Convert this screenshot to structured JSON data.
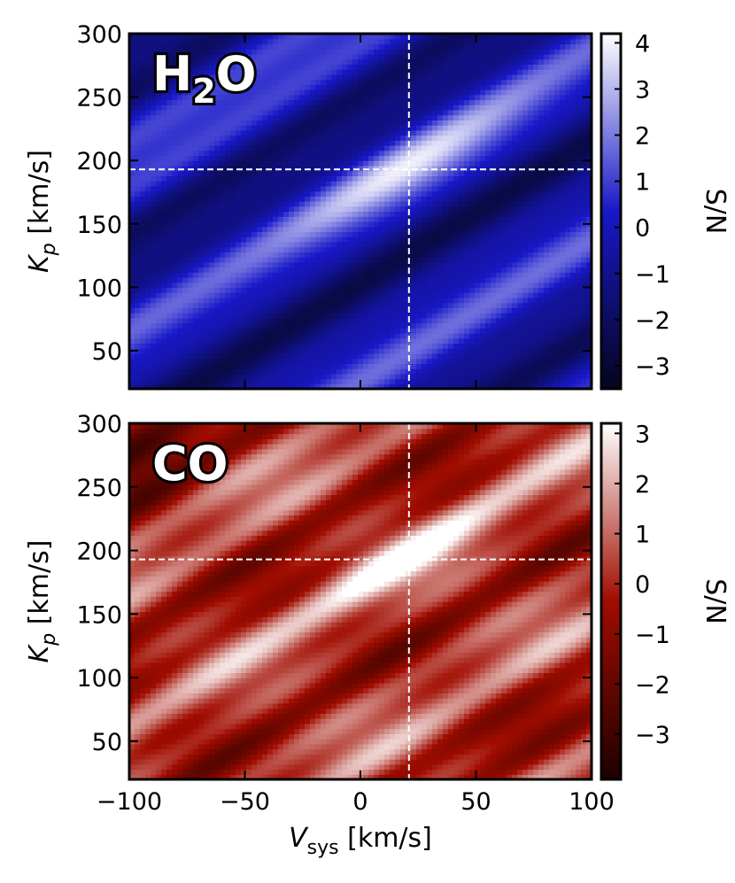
{
  "chart_data": [
    {
      "type": "heatmap",
      "title": "H₂O",
      "title_parts": {
        "main": "H",
        "sub": "2",
        "tail": "O"
      },
      "x": [
        -100,
        -80,
        -60,
        -40,
        -20,
        0,
        20,
        40,
        60,
        80,
        100
      ],
      "y": [
        20,
        40,
        60,
        80,
        100,
        120,
        140,
        160,
        180,
        200,
        220,
        240,
        260,
        280,
        300
      ],
      "xlabel": "",
      "ylabel_main": "K",
      "ylabel_sub": "p",
      "ylabel_unit": " [km/s]",
      "xlim": [
        -100,
        100
      ],
      "ylim": [
        20,
        300
      ],
      "yticks": [
        50,
        100,
        150,
        200,
        250,
        300
      ],
      "xticks": [
        -100,
        -50,
        0,
        50,
        100
      ],
      "show_xtick_labels": false,
      "colorbar_label": "S/N",
      "colorbar_range": [
        -3.5,
        4.2
      ],
      "colorbar_ticks": [
        -3,
        -2,
        -1,
        0,
        1,
        2,
        3,
        4
      ],
      "colorbar_tick_labels": [
        "−3",
        "−2",
        "−1",
        "0",
        "1",
        "2",
        "3",
        "4"
      ],
      "colormap": [
        "#05051e",
        "#1818c8",
        "#ffffff"
      ],
      "marker_lines": {
        "vsys": 21,
        "kp": 193
      },
      "peak": {
        "vsys": 21,
        "kp": 193,
        "snr": 4.2
      },
      "grid": false
    },
    {
      "type": "heatmap",
      "title": "CO",
      "x": [
        -100,
        -80,
        -60,
        -40,
        -20,
        0,
        20,
        40,
        60,
        80,
        100
      ],
      "y": [
        20,
        40,
        60,
        80,
        100,
        120,
        140,
        160,
        180,
        200,
        220,
        240,
        260,
        280,
        300
      ],
      "xlabel_main": "V",
      "xlabel_sub": "sys",
      "xlabel_unit": " [km/s]",
      "ylabel_main": "K",
      "ylabel_sub": "p",
      "ylabel_unit": " [km/s]",
      "xlim": [
        -100,
        100
      ],
      "ylim": [
        20,
        300
      ],
      "yticks": [
        50,
        100,
        150,
        200,
        250,
        300
      ],
      "xticks": [
        -100,
        -50,
        0,
        50,
        100
      ],
      "xtick_labels": [
        "−100",
        "−50",
        "0",
        "50",
        "100"
      ],
      "show_xtick_labels": true,
      "colorbar_label": "S/N",
      "colorbar_range": [
        -3.9,
        3.2
      ],
      "colorbar_ticks": [
        -3,
        -2,
        -1,
        0,
        1,
        2,
        3
      ],
      "colorbar_tick_labels": [
        "−3",
        "−2",
        "−1",
        "0",
        "1",
        "2",
        "3"
      ],
      "colormap": [
        "#1e0000",
        "#a00c00",
        "#ffffff"
      ],
      "marker_lines": {
        "vsys": 21,
        "kp": 193
      },
      "peak": {
        "vsys": 21,
        "kp": 193,
        "snr": 3.2
      },
      "grid": false
    }
  ]
}
